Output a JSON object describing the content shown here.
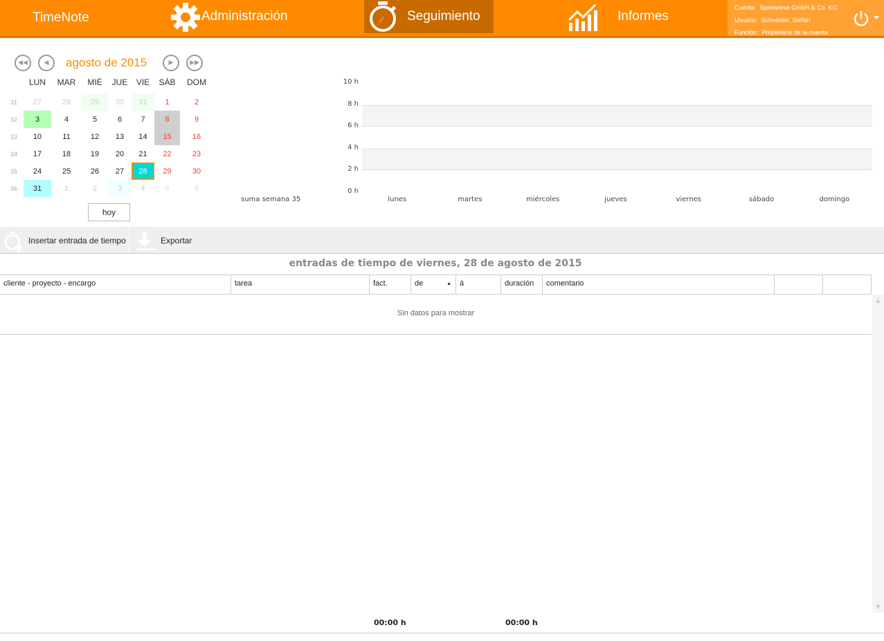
{
  "header": {
    "app": "TimeNote",
    "nav": [
      {
        "label": "Administración",
        "icon": "gear-icon"
      },
      {
        "label": "Seguimiento",
        "icon": "stopwatch-icon",
        "active": true
      },
      {
        "label": "Informes",
        "icon": "chart-icon"
      }
    ],
    "user": {
      "account_label": "Cuenta:",
      "account": "Spielwiese GmbH & Co. KG",
      "user_label": "Usuario:",
      "user": "Schneider, Stefan",
      "role_label": "Función:",
      "role": "Propietario de la cuenta"
    }
  },
  "calendar": {
    "month": "agosto de 2015",
    "days": [
      "LUN",
      "MAR",
      "MIÉ",
      "JUE",
      "VIE",
      "SÁB",
      "DOM"
    ],
    "today_button": "hoy",
    "weeks": [
      {
        "wk": "31",
        "d": [
          [
            "27",
            "other"
          ],
          [
            "28",
            "other"
          ],
          [
            "29",
            "other pgreen"
          ],
          [
            "30",
            "other"
          ],
          [
            "31",
            "other pgreen"
          ],
          [
            "1",
            "we"
          ],
          [
            "2",
            "we"
          ]
        ]
      },
      {
        "wk": "32",
        "d": [
          [
            "3",
            "green"
          ],
          [
            "4",
            ""
          ],
          [
            "5",
            ""
          ],
          [
            "6",
            ""
          ],
          [
            "7",
            ""
          ],
          [
            "8",
            "we gray"
          ],
          [
            "9",
            "we"
          ]
        ]
      },
      {
        "wk": "33",
        "d": [
          [
            "10",
            ""
          ],
          [
            "11",
            ""
          ],
          [
            "12",
            ""
          ],
          [
            "13",
            ""
          ],
          [
            "14",
            ""
          ],
          [
            "15",
            "we gray"
          ],
          [
            "16",
            "we"
          ]
        ]
      },
      {
        "wk": "34",
        "d": [
          [
            "17",
            ""
          ],
          [
            "18",
            ""
          ],
          [
            "19",
            ""
          ],
          [
            "20",
            ""
          ],
          [
            "21",
            ""
          ],
          [
            "22",
            "we"
          ],
          [
            "23",
            "we"
          ]
        ]
      },
      {
        "wk": "35",
        "d": [
          [
            "24",
            ""
          ],
          [
            "25",
            ""
          ],
          [
            "26",
            ""
          ],
          [
            "27",
            ""
          ],
          [
            "28",
            "sel"
          ],
          [
            "29",
            "we"
          ],
          [
            "30",
            "we"
          ]
        ]
      },
      {
        "wk": "36",
        "d": [
          [
            "31",
            "cyan"
          ],
          [
            "1",
            "other"
          ],
          [
            "2",
            "other"
          ],
          [
            "3",
            "other pcyan"
          ],
          [
            "4",
            "other"
          ],
          [
            "5",
            "other we"
          ],
          [
            "6",
            "other we"
          ]
        ]
      }
    ]
  },
  "chart_data": {
    "type": "bar",
    "title": "",
    "sum_label": "suma semana 35",
    "categories": [
      "lunes",
      "martes",
      "miércoles",
      "jueves",
      "viernes",
      "sábado",
      "domingo"
    ],
    "values": [
      0,
      0,
      0,
      0,
      0,
      0,
      0
    ],
    "yticks": [
      "0 h",
      "2 h",
      "4 h",
      "6 h",
      "8 h",
      "10 h"
    ],
    "ylim": [
      0,
      10
    ]
  },
  "toolbar": {
    "insert": "Insertar entrada de tiempo",
    "export": "Exportar"
  },
  "table": {
    "title": "entradas de tiempo de viernes, 28 de agosto de 2015",
    "columns": [
      "cliente - proyecto - encargo",
      "tarea",
      "fact.",
      "de",
      "á",
      "duración",
      "comentario",
      "",
      ""
    ],
    "empty": "Sin datos para mostrar",
    "total_from": "00:00 h",
    "total_duration": "00:00 h"
  }
}
